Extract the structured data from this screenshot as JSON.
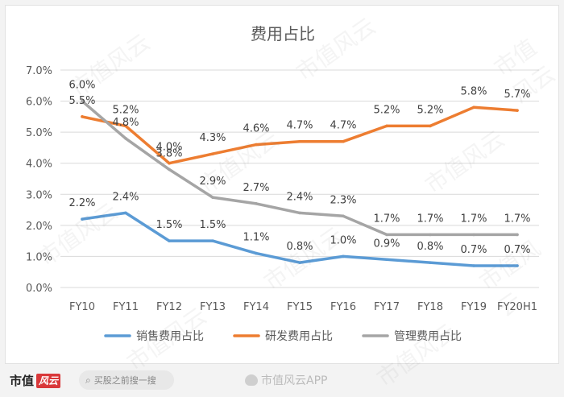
{
  "chart_data": {
    "type": "line",
    "title": "费用占比",
    "categories": [
      "FY10",
      "FY11",
      "FY12",
      "FY13",
      "FY14",
      "FY15",
      "FY16",
      "FY17",
      "FY18",
      "FY19",
      "FY20H1"
    ],
    "ylim": [
      0,
      7
    ],
    "yticks": [
      "0.0%",
      "1.0%",
      "2.0%",
      "3.0%",
      "4.0%",
      "5.0%",
      "6.0%",
      "7.0%"
    ],
    "grid": true,
    "legend_position": "bottom",
    "series": [
      {
        "name": "销售费用占比",
        "color": "#5b9bd5",
        "values": [
          2.2,
          2.4,
          1.5,
          1.5,
          1.1,
          0.8,
          1.0,
          0.9,
          0.8,
          0.7,
          0.7
        ],
        "labels": [
          "2.2%",
          "2.4%",
          "1.5%",
          "1.5%",
          "1.1%",
          "0.8%",
          "1.0%",
          "0.9%",
          "0.8%",
          "0.7%",
          "0.7%"
        ]
      },
      {
        "name": "研发费用占比",
        "color": "#ed7d31",
        "values": [
          5.5,
          5.2,
          4.0,
          4.3,
          4.6,
          4.7,
          4.7,
          5.2,
          5.2,
          5.8,
          5.7
        ],
        "labels": [
          "5.5%",
          "5.2%",
          "4.0%",
          "4.3%",
          "4.6%",
          "4.7%",
          "4.7%",
          "5.2%",
          "5.2%",
          "5.8%",
          "5.7%"
        ]
      },
      {
        "name": "管理费用占比",
        "color": "#a5a5a5",
        "values": [
          6.0,
          4.8,
          3.8,
          2.9,
          2.7,
          2.4,
          2.3,
          1.7,
          1.7,
          1.7,
          1.7
        ],
        "labels": [
          "6.0%",
          "4.8%",
          "3.8%",
          "2.9%",
          "2.7%",
          "2.4%",
          "2.3%",
          "1.7%",
          "1.7%",
          "1.7%",
          "1.7%"
        ]
      }
    ]
  },
  "watermark": "市值风云",
  "footer": {
    "brand": "市值",
    "brand_seal": "风云",
    "search_placeholder": "买股之前搜一搜",
    "weibo_text": "市值风云APP"
  },
  "colors": {
    "grid": "#d9d9d9",
    "axis_text": "#595959",
    "title": "#595959",
    "label": "#404040"
  }
}
